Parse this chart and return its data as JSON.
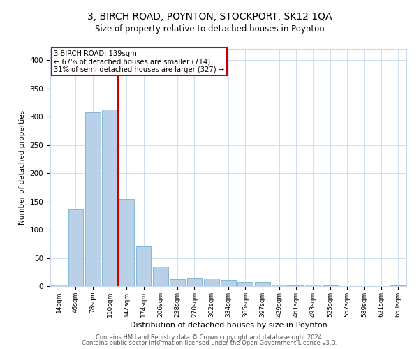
{
  "title": "3, BIRCH ROAD, POYNTON, STOCKPORT, SK12 1QA",
  "subtitle": "Size of property relative to detached houses in Poynton",
  "xlabel": "Distribution of detached houses by size in Poynton",
  "ylabel": "Number of detached properties",
  "categories": [
    "14sqm",
    "46sqm",
    "78sqm",
    "110sqm",
    "142sqm",
    "174sqm",
    "206sqm",
    "238sqm",
    "270sqm",
    "302sqm",
    "334sqm",
    "365sqm",
    "397sqm",
    "429sqm",
    "461sqm",
    "493sqm",
    "525sqm",
    "557sqm",
    "589sqm",
    "621sqm",
    "653sqm"
  ],
  "values": [
    3,
    136,
    307,
    312,
    154,
    71,
    34,
    12,
    15,
    14,
    11,
    8,
    7,
    3,
    1,
    2,
    1,
    0,
    0,
    0,
    1
  ],
  "bar_color": "#b8d0e8",
  "bar_edge_color": "#7aafd0",
  "vline_pos": 3.5,
  "vline_color": "#cc0000",
  "annotation_text": "3 BIRCH ROAD: 139sqm\n← 67% of detached houses are smaller (714)\n31% of semi-detached houses are larger (327) →",
  "annotation_box_color": "#ffffff",
  "annotation_box_edge": "#cc0000",
  "background_color": "#ffffff",
  "grid_color": "#c8d8ea",
  "footer1": "Contains HM Land Registry data © Crown copyright and database right 2024.",
  "footer2": "Contains public sector information licensed under the Open Government Licence v3.0.",
  "ylim": [
    0,
    420
  ],
  "yticks": [
    0,
    50,
    100,
    150,
    200,
    250,
    300,
    350,
    400
  ]
}
